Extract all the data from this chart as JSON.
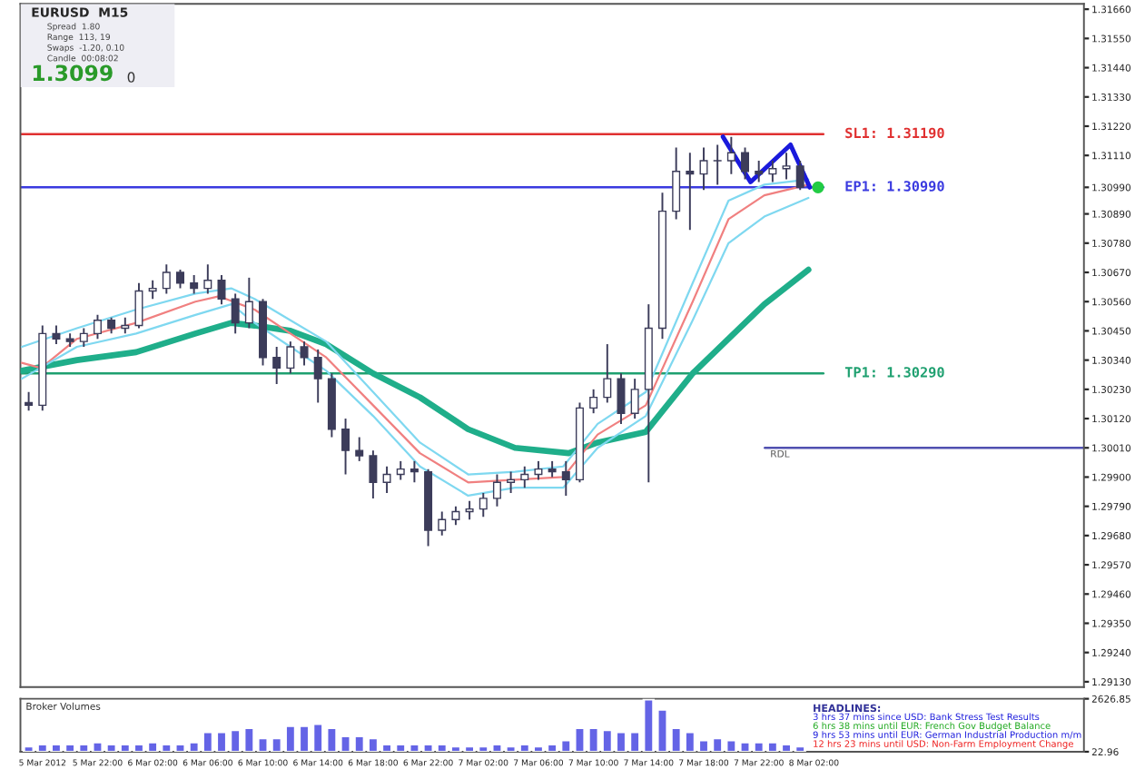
{
  "chart_data": [
    {
      "type": "candlestick",
      "color": "#3c3c5a",
      "x": [
        "2012-03-05T17:00",
        "2012-03-05T18:00",
        "2012-03-05T19:00",
        "2012-03-05T20:00",
        "2012-03-05T21:00",
        "2012-03-05T22:00",
        "2012-03-05T23:00",
        "2012-03-06T00:00",
        "2012-03-06T01:00",
        "2012-03-06T02:00",
        "2012-03-06T03:00",
        "2012-03-06T04:00",
        "2012-03-06T05:00",
        "2012-03-06T06:00",
        "2012-03-06T07:00",
        "2012-03-06T08:00",
        "2012-03-06T09:00",
        "2012-03-06T10:00",
        "2012-03-06T11:00",
        "2012-03-06T12:00",
        "2012-03-06T13:00",
        "2012-03-06T14:00",
        "2012-03-06T15:00",
        "2012-03-06T16:00",
        "2012-03-06T17:00",
        "2012-03-06T18:00",
        "2012-03-06T19:00",
        "2012-03-06T20:00",
        "2012-03-06T21:00",
        "2012-03-06T22:00",
        "2012-03-06T23:00",
        "2012-03-07T00:00",
        "2012-03-07T01:00",
        "2012-03-07T02:00",
        "2012-03-07T03:00",
        "2012-03-07T04:00",
        "2012-03-07T05:00",
        "2012-03-07T06:00",
        "2012-03-07T07:00",
        "2012-03-07T08:00",
        "2012-03-07T09:00",
        "2012-03-07T10:00",
        "2012-03-07T11:00",
        "2012-03-07T12:00",
        "2012-03-07T13:00",
        "2012-03-07T14:00",
        "2012-03-07T15:00",
        "2012-03-07T16:00",
        "2012-03-07T17:00",
        "2012-03-07T18:00",
        "2012-03-07T19:00",
        "2012-03-07T20:00",
        "2012-03-07T21:00",
        "2012-03-07T22:00",
        "2012-03-07T23:00",
        "2012-03-08T00:00",
        "2012-03-08T01:00"
      ],
      "ohlc": [
        [
          1.3018,
          1.3022,
          1.3015,
          1.3017
        ],
        [
          1.3017,
          1.3047,
          1.3015,
          1.3044
        ],
        [
          1.3044,
          1.3047,
          1.304,
          1.3042
        ],
        [
          1.3042,
          1.3044,
          1.3039,
          1.3041
        ],
        [
          1.3041,
          1.3046,
          1.3039,
          1.3044
        ],
        [
          1.3044,
          1.3051,
          1.3042,
          1.3049
        ],
        [
          1.3049,
          1.305,
          1.3044,
          1.3046
        ],
        [
          1.3046,
          1.305,
          1.3044,
          1.3047
        ],
        [
          1.3047,
          1.3063,
          1.3046,
          1.306
        ],
        [
          1.306,
          1.3064,
          1.3057,
          1.3061
        ],
        [
          1.3061,
          1.307,
          1.3059,
          1.3067
        ],
        [
          1.3067,
          1.3068,
          1.3061,
          1.3063
        ],
        [
          1.3063,
          1.3066,
          1.3059,
          1.3061
        ],
        [
          1.3061,
          1.307,
          1.3059,
          1.3064
        ],
        [
          1.3064,
          1.3066,
          1.3055,
          1.3057
        ],
        [
          1.3057,
          1.3059,
          1.3044,
          1.3048
        ],
        [
          1.3048,
          1.3065,
          1.3046,
          1.3056
        ],
        [
          1.3056,
          1.3057,
          1.3032,
          1.3035
        ],
        [
          1.3035,
          1.3039,
          1.3025,
          1.3031
        ],
        [
          1.3031,
          1.3041,
          1.3029,
          1.3039
        ],
        [
          1.3039,
          1.3041,
          1.3032,
          1.3035
        ],
        [
          1.3035,
          1.3038,
          1.3018,
          1.3027
        ],
        [
          1.3027,
          1.3029,
          1.3005,
          1.3008
        ],
        [
          1.3008,
          1.3012,
          1.2991,
          1.3
        ],
        [
          1.3,
          1.3005,
          1.2996,
          1.2998
        ],
        [
          1.2998,
          1.3,
          1.2982,
          1.2988
        ],
        [
          1.2988,
          1.2994,
          1.2984,
          1.2991
        ],
        [
          1.2991,
          1.2996,
          1.2989,
          1.2993
        ],
        [
          1.2993,
          1.2996,
          1.2988,
          1.2992
        ],
        [
          1.2992,
          1.2993,
          1.2964,
          1.297
        ],
        [
          1.297,
          1.2977,
          1.2968,
          1.2974
        ],
        [
          1.2974,
          1.2979,
          1.2972,
          1.2977
        ],
        [
          1.2977,
          1.2981,
          1.2974,
          1.2978
        ],
        [
          1.2978,
          1.2984,
          1.2975,
          1.2982
        ],
        [
          1.2982,
          1.2991,
          1.2979,
          1.2988
        ],
        [
          1.2988,
          1.2992,
          1.2984,
          1.2989
        ],
        [
          1.2989,
          1.2994,
          1.2986,
          1.2991
        ],
        [
          1.2991,
          1.2996,
          1.2989,
          1.2993
        ],
        [
          1.2993,
          1.2996,
          1.299,
          1.2992
        ],
        [
          1.2992,
          1.2996,
          1.2983,
          1.2989
        ],
        [
          1.2989,
          1.3018,
          1.2988,
          1.3016
        ],
        [
          1.3016,
          1.3023,
          1.3014,
          1.302
        ],
        [
          1.302,
          1.304,
          1.3018,
          1.3027
        ],
        [
          1.3027,
          1.3029,
          1.301,
          1.3014
        ],
        [
          1.3014,
          1.3027,
          1.3012,
          1.3023
        ],
        [
          1.3023,
          1.3055,
          1.2988,
          1.3046
        ],
        [
          1.3046,
          1.3097,
          1.3042,
          1.309
        ],
        [
          1.309,
          1.3114,
          1.3087,
          1.3105
        ],
        [
          1.3105,
          1.3112,
          1.3083,
          1.3104
        ],
        [
          1.3104,
          1.3114,
          1.3098,
          1.3109
        ],
        [
          1.3109,
          1.3115,
          1.31,
          1.3109
        ],
        [
          1.3109,
          1.3118,
          1.3104,
          1.3112
        ],
        [
          1.3112,
          1.3114,
          1.3102,
          1.3105
        ],
        [
          1.3105,
          1.3109,
          1.3101,
          1.3104
        ],
        [
          1.3104,
          1.3109,
          1.3101,
          1.3106
        ],
        [
          1.3106,
          1.3112,
          1.3102,
          1.3107
        ],
        [
          1.3107,
          1.3109,
          1.3098,
          1.3099
        ]
      ],
      "series": [
        {
          "type": "line",
          "color": "#1fae8a",
          "x": [
            "2012-03-05T16:30",
            "2012-03-05T20:30",
            "2012-03-06T00:48",
            "2012-03-06T05:06",
            "2012-03-06T07:42",
            "2012-03-06T09:24",
            "2012-03-06T12:00",
            "2012-03-06T14:36",
            "2012-03-06T18:00",
            "2012-03-06T21:24",
            "2012-03-07T00:54",
            "2012-03-07T04:18",
            "2012-03-07T08:12",
            "2012-03-07T10:18",
            "2012-03-07T13:48",
            "2012-03-07T17:12",
            "2012-03-07T19:48",
            "2012-03-07T22:24",
            "2012-03-08T01:36"
          ],
          "values": [
            1.303,
            1.3034,
            1.3037,
            1.3044,
            1.3048,
            1.3047,
            1.3045,
            1.304,
            1.3029,
            1.302,
            1.3008,
            1.3001,
            1.2999,
            1.3003,
            1.3007,
            1.3029,
            1.3042,
            1.3055,
            1.3068
          ]
        },
        {
          "type": "line",
          "color": "#f08080",
          "x": [
            "2012-03-05T16:30",
            "2012-03-05T17:54",
            "2012-03-05T20:30",
            "2012-03-06T00:48",
            "2012-03-06T05:06",
            "2012-03-06T06:48",
            "2012-03-06T09:24",
            "2012-03-06T12:00",
            "2012-03-06T14:36",
            "2012-03-06T18:00",
            "2012-03-06T21:24",
            "2012-03-07T00:54",
            "2012-03-07T04:18",
            "2012-03-07T07:48",
            "2012-03-07T10:18",
            "2012-03-07T13:48",
            "2012-03-07T17:12",
            "2012-03-07T19:48",
            "2012-03-07T22:24",
            "2012-03-08T01:36"
          ],
          "values": [
            1.3033,
            1.3031,
            1.3042,
            1.3048,
            1.3056,
            1.3058,
            1.3053,
            1.3044,
            1.3035,
            1.3017,
            1.2999,
            1.2988,
            1.2989,
            1.299,
            1.3006,
            1.3017,
            1.3056,
            1.3087,
            1.3096,
            1.31
          ]
        },
        {
          "type": "line",
          "color": "#7fd8f0",
          "x": [
            "2012-03-05T16:30",
            "2012-03-05T20:30",
            "2012-03-06T00:48",
            "2012-03-06T05:06",
            "2012-03-06T07:42",
            "2012-03-06T09:24",
            "2012-03-06T12:00",
            "2012-03-06T14:36",
            "2012-03-06T18:00",
            "2012-03-06T21:24",
            "2012-03-07T00:54",
            "2012-03-07T04:18",
            "2012-03-07T07:48",
            "2012-03-07T10:18",
            "2012-03-07T13:48",
            "2012-03-07T17:12",
            "2012-03-07T19:48",
            "2012-03-07T22:24",
            "2012-03-08T01:36"
          ],
          "values": [
            1.3039,
            1.3046,
            1.3053,
            1.3059,
            1.3061,
            1.3057,
            1.3049,
            1.3041,
            1.3022,
            1.3003,
            1.2991,
            1.2992,
            1.2994,
            1.301,
            1.3022,
            1.3063,
            1.3094,
            1.31,
            1.3102
          ]
        },
        {
          "type": "line",
          "color": "#7fd8f0",
          "x": [
            "2012-03-05T16:30",
            "2012-03-05T20:30",
            "2012-03-06T00:48",
            "2012-03-06T05:06",
            "2012-03-06T07:42",
            "2012-03-06T09:24",
            "2012-03-06T12:00",
            "2012-03-06T14:36",
            "2012-03-06T18:00",
            "2012-03-06T21:24",
            "2012-03-07T00:54",
            "2012-03-07T04:18",
            "2012-03-07T07:48",
            "2012-03-07T10:18",
            "2012-03-07T13:48",
            "2012-03-07T17:12",
            "2012-03-07T19:48",
            "2012-03-07T22:24",
            "2012-03-08T01:36"
          ],
          "values": [
            1.3027,
            1.3039,
            1.3044,
            1.3051,
            1.3055,
            1.3048,
            1.3039,
            1.303,
            1.3013,
            1.2994,
            1.2983,
            1.2986,
            1.2986,
            1.3001,
            1.3013,
            1.3049,
            1.3078,
            1.3088,
            1.3095
          ]
        },
        {
          "type": "line",
          "color": "#1a1adc",
          "x": [
            "2012-03-07T19:24",
            "2012-03-07T21:24",
            "2012-03-08T00:18",
            "2012-03-08T01:42"
          ],
          "values": [
            1.3118,
            1.3101,
            1.3115,
            1.3099
          ]
        },
        {
          "type": "scatter",
          "color": "#22cc44",
          "x": [
            "2012-03-08T02:18"
          ],
          "values": [
            1.3099
          ]
        }
      ],
      "ref_lines": [
        {
          "axis": "y",
          "value": 1.3119,
          "label": "SL1: 1.31190",
          "color": "#e03030"
        },
        {
          "axis": "y",
          "value": 1.3099,
          "label": "EP1: 1.30990",
          "color": "#3a3ae0"
        },
        {
          "axis": "y",
          "value": 1.3029,
          "label": "TP1: 1.30290",
          "color": "#1fa070"
        },
        {
          "axis": "y",
          "value": 1.3001,
          "label": "RDL",
          "color": "#5050b0"
        }
      ],
      "annotations": [
        "EURUSD  M15",
        "Spread  1.80",
        "Range  113, 19",
        "Swaps  -1.20, 0.10",
        "Candle  00:08:02",
        "1.3099",
        "0"
      ],
      "xlim": [
        "2012-03-05T16:24",
        "2012-03-08T21:36"
      ],
      "ylim": [
        1.2911,
        1.3168
      ],
      "yticks": [
        {
          "value": 1.3166,
          "label": "1.31660"
        },
        {
          "value": 1.3155,
          "label": "1.31550"
        },
        {
          "value": 1.3144,
          "label": "1.31440"
        },
        {
          "value": 1.3133,
          "label": "1.31330"
        },
        {
          "value": 1.3122,
          "label": "1.31220"
        },
        {
          "value": 1.3111,
          "label": "1.31110"
        },
        {
          "value": 1.3099,
          "label": "1.30990"
        },
        {
          "value": 1.3089,
          "label": "1.30890"
        },
        {
          "value": 1.3078,
          "label": "1.30780"
        },
        {
          "value": 1.3067,
          "label": "1.30670"
        },
        {
          "value": 1.3056,
          "label": "1.30560"
        },
        {
          "value": 1.3045,
          "label": "1.30450"
        },
        {
          "value": 1.3034,
          "label": "1.30340"
        },
        {
          "value": 1.3023,
          "label": "1.30230"
        },
        {
          "value": 1.3012,
          "label": "1.30120"
        },
        {
          "value": 1.3001,
          "label": "1.30010"
        },
        {
          "value": 1.299,
          "label": "1.29900"
        },
        {
          "value": 1.2979,
          "label": "1.29790"
        },
        {
          "value": 1.2968,
          "label": "1.29680"
        },
        {
          "value": 1.2957,
          "label": "1.29570"
        },
        {
          "value": 1.2946,
          "label": "1.29460"
        },
        {
          "value": 1.2935,
          "label": "1.29350"
        },
        {
          "value": 1.2924,
          "label": "1.29240"
        },
        {
          "value": 1.2913,
          "label": "1.29130"
        }
      ],
      "tick_labels": "y"
    },
    {
      "type": "bar",
      "title": "Broker Volumes",
      "color": "#6464e6",
      "x": [
        "2012-03-05T17:00",
        "2012-03-05T18:00",
        "2012-03-05T19:00",
        "2012-03-05T20:00",
        "2012-03-05T21:00",
        "2012-03-05T22:00",
        "2012-03-05T23:00",
        "2012-03-06T00:00",
        "2012-03-06T01:00",
        "2012-03-06T02:00",
        "2012-03-06T03:00",
        "2012-03-06T04:00",
        "2012-03-06T05:00",
        "2012-03-06T06:00",
        "2012-03-06T07:00",
        "2012-03-06T08:00",
        "2012-03-06T09:00",
        "2012-03-06T10:00",
        "2012-03-06T11:00",
        "2012-03-06T12:00",
        "2012-03-06T13:00",
        "2012-03-06T14:00",
        "2012-03-06T15:00",
        "2012-03-06T16:00",
        "2012-03-06T17:00",
        "2012-03-06T18:00",
        "2012-03-06T19:00",
        "2012-03-06T20:00",
        "2012-03-06T21:00",
        "2012-03-06T22:00",
        "2012-03-06T23:00",
        "2012-03-07T00:00",
        "2012-03-07T01:00",
        "2012-03-07T02:00",
        "2012-03-07T03:00",
        "2012-03-07T04:00",
        "2012-03-07T05:00",
        "2012-03-07T06:00",
        "2012-03-07T07:00",
        "2012-03-07T08:00",
        "2012-03-07T09:00",
        "2012-03-07T10:00",
        "2012-03-07T11:00",
        "2012-03-07T12:00",
        "2012-03-07T13:00",
        "2012-03-07T14:00",
        "2012-03-07T15:00",
        "2012-03-07T16:00",
        "2012-03-07T17:00",
        "2012-03-07T18:00",
        "2012-03-07T19:00",
        "2012-03-07T20:00",
        "2012-03-07T21:00",
        "2012-03-07T22:00",
        "2012-03-07T23:00",
        "2012-03-08T00:00",
        "2012-03-08T01:00"
      ],
      "values": [
        300,
        400,
        400,
        400,
        400,
        500,
        400,
        400,
        400,
        500,
        400,
        400,
        500,
        1000,
        1000,
        1100,
        1200,
        700,
        700,
        1300,
        1300,
        1400,
        1200,
        800,
        800,
        700,
        400,
        400,
        400,
        400,
        400,
        300,
        300,
        300,
        400,
        300,
        400,
        300,
        400,
        600,
        1200,
        1200,
        1100,
        1000,
        1000,
        2600,
        2100,
        1200,
        1000,
        600,
        700,
        600,
        500,
        500,
        500,
        400,
        300
      ],
      "annotations": [
        "HEADLINES:",
        "3 hrs 37 mins since USD: Bank Stress Test Results",
        "6 hrs 38 mins until EUR: French Gov Budget Balance",
        "9 hrs 53 mins until EUR: German Industrial Production m/m",
        "12 hrs 23 mins until USD: Non-Farm Employment Change"
      ],
      "xlim": [
        "2012-03-05T16:24",
        "2012-03-08T21:36"
      ],
      "xticks": [
        {
          "value": "2012-03-05T18:00",
          "label": "5 Mar 2012"
        },
        {
          "value": "2012-03-05T22:00",
          "label": "5 Mar 22:00"
        },
        {
          "value": "2012-03-06T02:00",
          "label": "6 Mar 02:00"
        },
        {
          "value": "2012-03-06T06:00",
          "label": "6 Mar 06:00"
        },
        {
          "value": "2012-03-06T10:00",
          "label": "6 Mar 10:00"
        },
        {
          "value": "2012-03-06T14:00",
          "label": "6 Mar 14:00"
        },
        {
          "value": "2012-03-06T18:00",
          "label": "6 Mar 18:00"
        },
        {
          "value": "2012-03-06T22:00",
          "label": "6 Mar 22:00"
        },
        {
          "value": "2012-03-07T02:00",
          "label": "7 Mar 02:00"
        },
        {
          "value": "2012-03-07T06:00",
          "label": "7 Mar 06:00"
        },
        {
          "value": "2012-03-07T10:00",
          "label": "7 Mar 10:00"
        },
        {
          "value": "2012-03-07T14:00",
          "label": "7 Mar 14:00"
        },
        {
          "value": "2012-03-07T18:00",
          "label": "7 Mar 18:00"
        },
        {
          "value": "2012-03-07T22:00",
          "label": "7 Mar 22:00"
        },
        {
          "value": "2012-03-08T02:00",
          "label": "8 Mar 02:00"
        }
      ],
      "ylim": [
        22.96,
        2626.85
      ],
      "yticks": [
        2626.85,
        22.96
      ]
    }
  ]
}
